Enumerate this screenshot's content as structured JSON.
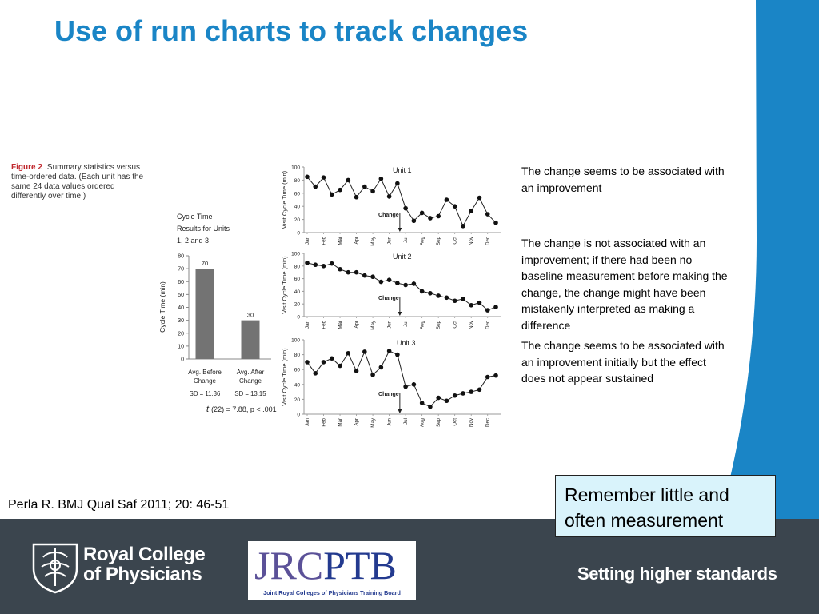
{
  "slide": {
    "title": "Use of run charts to track changes",
    "figure_label": "Figure 2",
    "figure_caption": "Summary statistics versus time-ordered data. (Each unit has the same 24 data values ordered differently over time.)",
    "annotations": [
      "The change seems to be associated with an improvement",
      "The change is not associated with an improvement; if there had been no baseline measurement before making the change, the change might have been mistakenly interpreted as making a difference",
      "The change seems to be associated with an improvement initially but the effect does not appear sustained"
    ],
    "callout": "Remember little and often measurement",
    "citation": "Perla R. BMJ Qual Saf 2011; 20: 46-51"
  },
  "footer": {
    "rcp_line1": "Royal College",
    "rcp_line2": "of Physicians",
    "jrcptb_j": "JRC",
    "jrcptb_p": "PTB",
    "jrcptb_sub": "Joint Royal Colleges of Physicians Training Board",
    "tagline": "Setting higher standards"
  },
  "colors": {
    "title": "#1a85c6",
    "figure_label": "#c0272d",
    "bars": "#737373",
    "footer_bg": "#3b454e",
    "side_band": "#1a85c6",
    "callout_bg": "#d9f3fb"
  },
  "chart_data": [
    {
      "type": "bar",
      "title_lines": [
        "Cycle Time",
        "Results for Units",
        "1, 2 and 3"
      ],
      "categories": [
        [
          "Avg. Before",
          "Change"
        ],
        [
          "Avg. After",
          "Change"
        ]
      ],
      "values": [
        70,
        30
      ],
      "sd_labels": [
        "SD = 11.36",
        "SD = 13.15"
      ],
      "stat_label": "(22) = 7.88, p < .001",
      "stat_symbol": "t",
      "ylabel": "Cycle Time (min)",
      "ylim": [
        0,
        80
      ],
      "yticks": [
        0,
        10,
        20,
        30,
        40,
        50,
        60,
        70,
        80
      ]
    },
    {
      "type": "line",
      "title": "Unit 1",
      "ylabel": "Visit Cycle Time (min)",
      "ylim": [
        0,
        100
      ],
      "yticks": [
        0,
        20,
        40,
        60,
        80,
        100
      ],
      "month_labels": [
        "Jan",
        "Feb",
        "Mar",
        "Apr",
        "May",
        "Jun",
        "Jul",
        "Aug",
        "Sep",
        "Oct",
        "Nov",
        "Dec"
      ],
      "annotation": "Change",
      "change_index": 11,
      "values": [
        85,
        70,
        84,
        58,
        65,
        80,
        54,
        70,
        63,
        82,
        55,
        75,
        37,
        18,
        30,
        22,
        25,
        50,
        40,
        10,
        33,
        53,
        28,
        15
      ]
    },
    {
      "type": "line",
      "title": "Unit 2",
      "ylabel": "Visit Cycle Time (min)",
      "ylim": [
        0,
        100
      ],
      "yticks": [
        0,
        20,
        40,
        60,
        80,
        100
      ],
      "month_labels": [
        "Jan",
        "Feb",
        "Mar",
        "Apr",
        "May",
        "Jun",
        "Jul",
        "Aug",
        "Sep",
        "Oct",
        "Nov",
        "Dec"
      ],
      "annotation": "Change",
      "change_index": 11,
      "values": [
        85,
        82,
        80,
        84,
        75,
        70,
        70,
        65,
        63,
        55,
        58,
        53,
        50,
        52,
        40,
        37,
        33,
        30,
        25,
        28,
        18,
        22,
        10,
        15
      ]
    },
    {
      "type": "line",
      "title": "Unit 3",
      "ylabel": "Visit Cycle Time (min)",
      "ylim": [
        0,
        100
      ],
      "yticks": [
        0,
        20,
        40,
        60,
        80,
        100
      ],
      "month_labels": [
        "Jan",
        "Feb",
        "Mar",
        "Apr",
        "May",
        "Jun",
        "Jul",
        "Aug",
        "Sep",
        "Oct",
        "Nov",
        "Dec"
      ],
      "annotation": "Change",
      "change_index": 11,
      "values": [
        70,
        55,
        70,
        75,
        65,
        82,
        58,
        84,
        53,
        63,
        85,
        80,
        37,
        40,
        15,
        10,
        22,
        18,
        25,
        28,
        30,
        33,
        50,
        52
      ]
    }
  ]
}
